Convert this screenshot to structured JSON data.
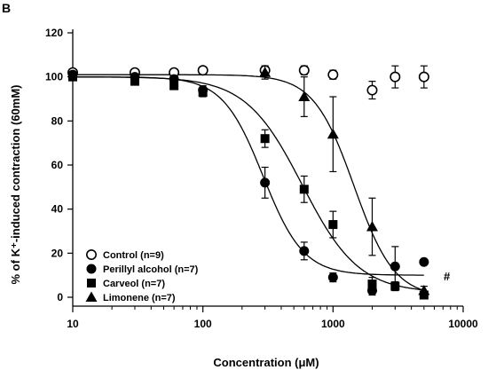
{
  "chart_data": {
    "type": "scatter",
    "panel_label": "B",
    "xlabel": "Concentration (μM)",
    "ylabel": "% of K⁺-induced contraction (60mM)",
    "x_scale": "log",
    "xlim": [
      10,
      10000
    ],
    "ylim": [
      0,
      120
    ],
    "x_ticks": [
      10,
      100,
      1000,
      10000
    ],
    "x_tick_labels": [
      "10",
      "100",
      "1000",
      "10000"
    ],
    "y_ticks": [
      0,
      20,
      40,
      60,
      80,
      100,
      120
    ],
    "y_tick_labels": [
      "0",
      "20",
      "40",
      "60",
      "80",
      "100",
      "120"
    ],
    "grid": false,
    "legend_position": "bottom-left",
    "annotation": "#",
    "series": [
      {
        "name": "Control (n=9)",
        "marker": "circle-open",
        "x": [
          10,
          30,
          60,
          100,
          300,
          600,
          1000,
          2000,
          3000,
          5000
        ],
        "y": [
          102,
          102,
          102,
          103,
          103,
          103,
          101,
          94,
          100,
          100
        ],
        "err": [
          1,
          1,
          1,
          1,
          2,
          2,
          2,
          4,
          5,
          5
        ]
      },
      {
        "name": "Perillyl alcohol (n=7)",
        "marker": "circle-filled",
        "x": [
          10,
          30,
          60,
          100,
          300,
          600,
          1000,
          2000,
          3000,
          5000
        ],
        "y": [
          101,
          100,
          99,
          94,
          52,
          21,
          9,
          3,
          14,
          16
        ],
        "err": [
          1,
          1,
          1,
          2,
          7,
          4,
          2,
          2,
          9,
          1
        ],
        "fit": {
          "top": 100,
          "bottom": 10,
          "ec50": 290,
          "hill": 2.8
        }
      },
      {
        "name": "Carveol (n=7)",
        "marker": "square-filled",
        "x": [
          10,
          30,
          60,
          100,
          300,
          600,
          1000,
          2000,
          3000,
          5000
        ],
        "y": [
          100,
          98,
          96,
          93,
          72,
          49,
          33,
          6,
          5,
          1
        ],
        "err": [
          1,
          1,
          1,
          2,
          4,
          6,
          6,
          3,
          2,
          1
        ],
        "fit": {
          "top": 100,
          "bottom": 2,
          "ec50": 580,
          "hill": 2.0
        }
      },
      {
        "name": "Limonene (n=7)",
        "marker": "triangle-filled",
        "x": [
          300,
          600,
          1000,
          2000,
          5000
        ],
        "y": [
          102,
          91,
          74,
          32,
          3
        ],
        "err": [
          3,
          9,
          17,
          13,
          2
        ],
        "fit": {
          "top": 101,
          "bottom": 0,
          "ec50": 1450,
          "hill": 2.8
        }
      }
    ]
  }
}
